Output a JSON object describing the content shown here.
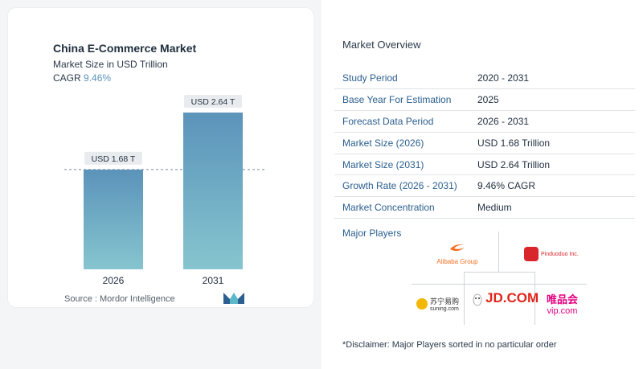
{
  "header": {
    "title": "China E-Commerce Market",
    "subtitle": "Market Size in USD Trillion",
    "cagr_label": "CAGR",
    "cagr_value": "9.46%"
  },
  "chart_data": {
    "type": "bar",
    "categories": [
      "2026",
      "2031"
    ],
    "values": [
      1.68,
      2.64
    ],
    "data_labels": [
      "USD 1.68 T",
      "USD 2.64 T"
    ],
    "title": "China E-Commerce Market",
    "ylabel": "",
    "xlabel": "",
    "ylim": [
      0,
      2.64
    ],
    "grid": false,
    "reference_line": 1.68,
    "bar_color_top": "#5b93ba",
    "bar_color_bottom": "#86c5cf"
  },
  "source": "Source :  Mordor Intelligence",
  "overview": {
    "title": "Market Overview",
    "rows": [
      {
        "key": "Study Period",
        "value": "2020 - 2031"
      },
      {
        "key": "Base Year For Estimation",
        "value": "2025"
      },
      {
        "key": "Forecast Data Period",
        "value": "2026 - 2031"
      },
      {
        "key": "Market Size (2026)",
        "value": "USD 1.68 Trillion"
      },
      {
        "key": "Market Size (2031)",
        "value": "USD 2.64 Trillion"
      },
      {
        "key": "Growth Rate (2026 - 2031)",
        "value": "9.46% CAGR"
      },
      {
        "key": "Market Concentration",
        "value": "Medium"
      }
    ]
  },
  "players": {
    "title": "Major Players",
    "alibaba": "Alibaba Group",
    "pinduoduo": "Pinduoduo Inc.",
    "suning_cn": "苏宁易购",
    "suning_en": "suning.com",
    "jd": "JD.COM",
    "vip_cn": "唯品会",
    "vip_en": "vip.com"
  },
  "disclaimer": "*Disclaimer: Major Players sorted in no particular order",
  "colors": {
    "accent": "#2b5f8f",
    "bar": "#5b93ba",
    "alibaba": "#f36f21",
    "pinduoduo": "#d9262c",
    "jd": "#e1251b",
    "vip": "#e3007f"
  }
}
